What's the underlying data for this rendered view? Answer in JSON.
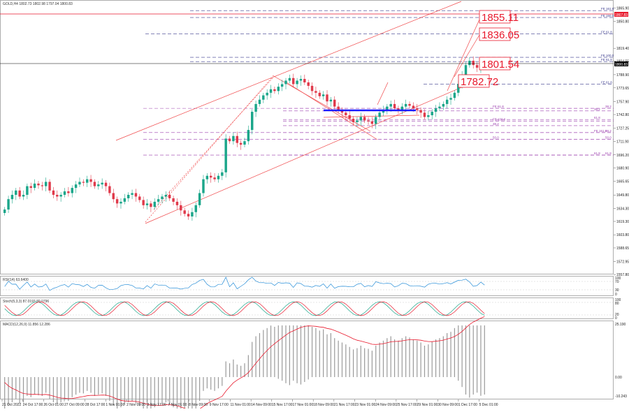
{
  "header": {
    "symbol_line": "GOLD,H4  1802.73 1802.98 1797.04 1800.83"
  },
  "price_panel": {
    "ylim": [
      1562,
      1872
    ],
    "current_price_label": "1800.83",
    "top_tag": "1867.83",
    "y_ticks": [
      "1865.90",
      "1850.80",
      "1819.40",
      "1804.55",
      "1788.90",
      "1773.65",
      "1757.90",
      "1742.80",
      "1727.25",
      "1711.90",
      "1696.20",
      "1680.90",
      "1665.65",
      "1649.80",
      "1634.30",
      "1619.30",
      "1603.80",
      "1588.65",
      "1572.95",
      "1557.80"
    ],
    "callouts": [
      {
        "text": "1855.11",
        "color": "#e8192c"
      },
      {
        "text": "1836.05",
        "color": "#e8192c"
      },
      {
        "text": "1801.54",
        "color": "#e8192c"
      },
      {
        "text": "1782.72",
        "color": "#e8192c"
      }
    ],
    "fib_right": [
      {
        "label": "FE 161.8",
        "price": 1863,
        "color": "#3a3a8c"
      },
      {
        "label": "FE 150.0",
        "price": 1855,
        "color": "#3a3a8c"
      },
      {
        "label": "FE 61.8",
        "price": 1836,
        "color": "#3a3a8c"
      },
      {
        "label": "FE 100.0",
        "price": 1809,
        "color": "#3a3a8c"
      },
      {
        "label": "FE 61.8",
        "price": 1804,
        "color": "#3a3a8c"
      },
      {
        "label": "FE 61.8",
        "price": 1778,
        "color": "#3a3a8c"
      }
    ],
    "fib_mid": [
      {
        "label": "FE 61.8",
        "price": 1750,
        "color": "#9b3fae"
      },
      {
        "label": "38.2",
        "price": 1747,
        "color": "#9b3fae"
      },
      {
        "label": "FE 100.0",
        "price": 1735,
        "color": "#9b3fae"
      },
      {
        "label": "61.8",
        "price": 1737,
        "color": "#9b3fae"
      },
      {
        "label": "38.2",
        "price": 1730,
        "color": "#9b3fae"
      },
      {
        "label": "FE 161.8",
        "price": 1722,
        "color": "#9b3fae"
      },
      {
        "label": "50.0",
        "price": 1714,
        "color": "#9b3fae"
      },
      {
        "label": "61.8",
        "price": 1696,
        "color": "#9b3fae"
      }
    ],
    "fib_left_levels": [
      {
        "label": "38.2",
        "price": 1750
      },
      {
        "label": "38.2",
        "price": 1722
      },
      {
        "label": "50.0",
        "price": 1714
      },
      {
        "label": "61.8",
        "price": 1696
      }
    ]
  },
  "rsi_panel": {
    "title": "RSI(14) 63.6400",
    "ticks": [
      "100",
      "70",
      "30",
      "0"
    ]
  },
  "stoch_panel": {
    "title": "Stoch(5,3,3) 87.0193 89.0796",
    "ticks": [
      "100",
      "80",
      "20",
      "0"
    ]
  },
  "macd_panel": {
    "title": "MACD(12,26,9) 11.856 12.286",
    "ticks": [
      "25.190",
      "0.00",
      "-10.243"
    ]
  },
  "x_axis": {
    "labels": [
      "21 Oct 2022",
      "24 Oct 17:00",
      "26 Oct 01:00",
      "27 Oct 09:00",
      "28 Oct 17:00",
      "1 Nov 01:00",
      "2 Nov 09:00",
      "3 Nov 17:00",
      "7 Nov 01:00",
      "8 Nov 09:00",
      "9 Nov 17:00",
      "11 Nov 01:00",
      "14 Nov 09:00",
      "15 Nov 17:00",
      "17 Nov 01:00",
      "18 Nov 09:00",
      "21 Nov 17:00",
      "23 Nov 01:00",
      "24 Nov 09:00",
      "25 Nov 17:00",
      "29 Nov 01:00",
      "30 Nov 09:00",
      "1 Dec 17:00",
      "5 Dec 01:00"
    ]
  },
  "chart_data": {
    "type": "candlestick",
    "title": "GOLD,H4",
    "ylim": [
      1562,
      1872
    ],
    "series": [
      {
        "name": "GOLD,H4",
        "close_path": [
          1633,
          1645,
          1650,
          1655,
          1648,
          1650,
          1660,
          1658,
          1663,
          1661,
          1660,
          1665,
          1655,
          1650,
          1648,
          1650,
          1654,
          1652,
          1658,
          1662,
          1665,
          1664,
          1668,
          1665,
          1660,
          1662,
          1664,
          1660,
          1652,
          1645,
          1640,
          1642,
          1646,
          1650,
          1652,
          1648,
          1644,
          1638,
          1640,
          1636,
          1642,
          1645,
          1648,
          1650,
          1646,
          1642,
          1638,
          1632,
          1628,
          1625,
          1630,
          1638,
          1652,
          1668,
          1672,
          1670,
          1668,
          1672,
          1676,
          1715,
          1712,
          1718,
          1710,
          1708,
          1712,
          1725,
          1746,
          1755,
          1760,
          1765,
          1768,
          1772,
          1770,
          1775,
          1778,
          1782,
          1785,
          1778,
          1782,
          1784,
          1780,
          1776,
          1770,
          1768,
          1764,
          1766,
          1758,
          1760,
          1752,
          1748,
          1745,
          1742,
          1738,
          1734,
          1736,
          1740,
          1736,
          1735,
          1732,
          1740,
          1745,
          1748,
          1752,
          1755,
          1750,
          1748,
          1752,
          1755,
          1753,
          1750,
          1748,
          1745,
          1740,
          1742,
          1746,
          1750,
          1752,
          1755,
          1760,
          1762,
          1768,
          1778,
          1788,
          1800,
          1805,
          1800,
          1797,
          1802,
          1800
        ]
      }
    ]
  }
}
